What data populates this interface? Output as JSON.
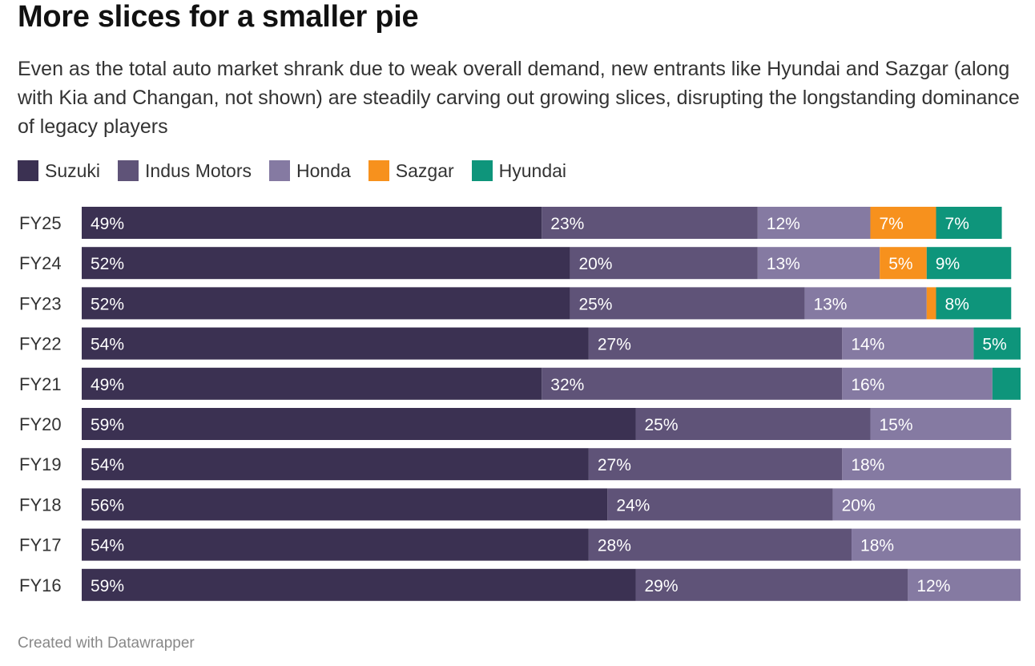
{
  "title": "More slices for a smaller pie",
  "subtitle": "Even as the total auto market shrank due to weak overall demand, new entrants like Hyundai and Sazgar (along with Kia and Changan, not shown) are steadily carving out growing slices, disrupting the longstanding dominance of legacy players",
  "footer": "Created with Datawrapper",
  "legend": [
    {
      "name": "Suzuki",
      "color": "#3b3152"
    },
    {
      "name": "Indus Motors",
      "color": "#5f5378"
    },
    {
      "name": "Honda",
      "color": "#857aa2"
    },
    {
      "name": "Sazgar",
      "color": "#f7911d"
    },
    {
      "name": "Hyundai",
      "color": "#0e957b"
    }
  ],
  "chart_data": {
    "type": "bar",
    "orientation": "horizontal",
    "stacked": true,
    "categories": [
      "FY25",
      "FY24",
      "FY23",
      "FY22",
      "FY21",
      "FY20",
      "FY19",
      "FY18",
      "FY17",
      "FY16"
    ],
    "series": [
      {
        "name": "Suzuki",
        "color": "#3b3152",
        "values": [
          49,
          52,
          52,
          54,
          49,
          59,
          54,
          56,
          54,
          59
        ],
        "labels": [
          "49%",
          "52%",
          "52%",
          "54%",
          "49%",
          "59%",
          "54%",
          "56%",
          "54%",
          "59%"
        ]
      },
      {
        "name": "Indus Motors",
        "color": "#5f5378",
        "values": [
          23,
          20,
          25,
          27,
          32,
          25,
          27,
          24,
          28,
          29
        ],
        "labels": [
          "23%",
          "20%",
          "25%",
          "27%",
          "32%",
          "25%",
          "27%",
          "24%",
          "28%",
          "29%"
        ]
      },
      {
        "name": "Honda",
        "color": "#857aa2",
        "values": [
          12,
          13,
          13,
          14,
          16,
          15,
          18,
          20,
          18,
          12
        ],
        "labels": [
          "12%",
          "13%",
          "13%",
          "14%",
          "16%",
          "15%",
          "18%",
          "20%",
          "18%",
          "12%"
        ]
      },
      {
        "name": "Sazgar",
        "color": "#f7911d",
        "values": [
          7,
          5,
          1,
          0,
          0,
          0,
          0,
          0,
          0,
          0
        ],
        "labels": [
          "7%",
          "5%",
          "",
          "",
          "",
          "",
          "",
          "",
          "",
          ""
        ]
      },
      {
        "name": "Hyundai",
        "color": "#0e957b",
        "values": [
          7,
          9,
          8,
          5,
          3,
          0,
          0,
          0,
          0,
          0
        ],
        "labels": [
          "7%",
          "9%",
          "8%",
          "5%",
          "",
          "",
          "",
          "",
          "",
          ""
        ]
      }
    ],
    "xlim": [
      0,
      100
    ],
    "grid": false,
    "legend_position": "top-left"
  }
}
